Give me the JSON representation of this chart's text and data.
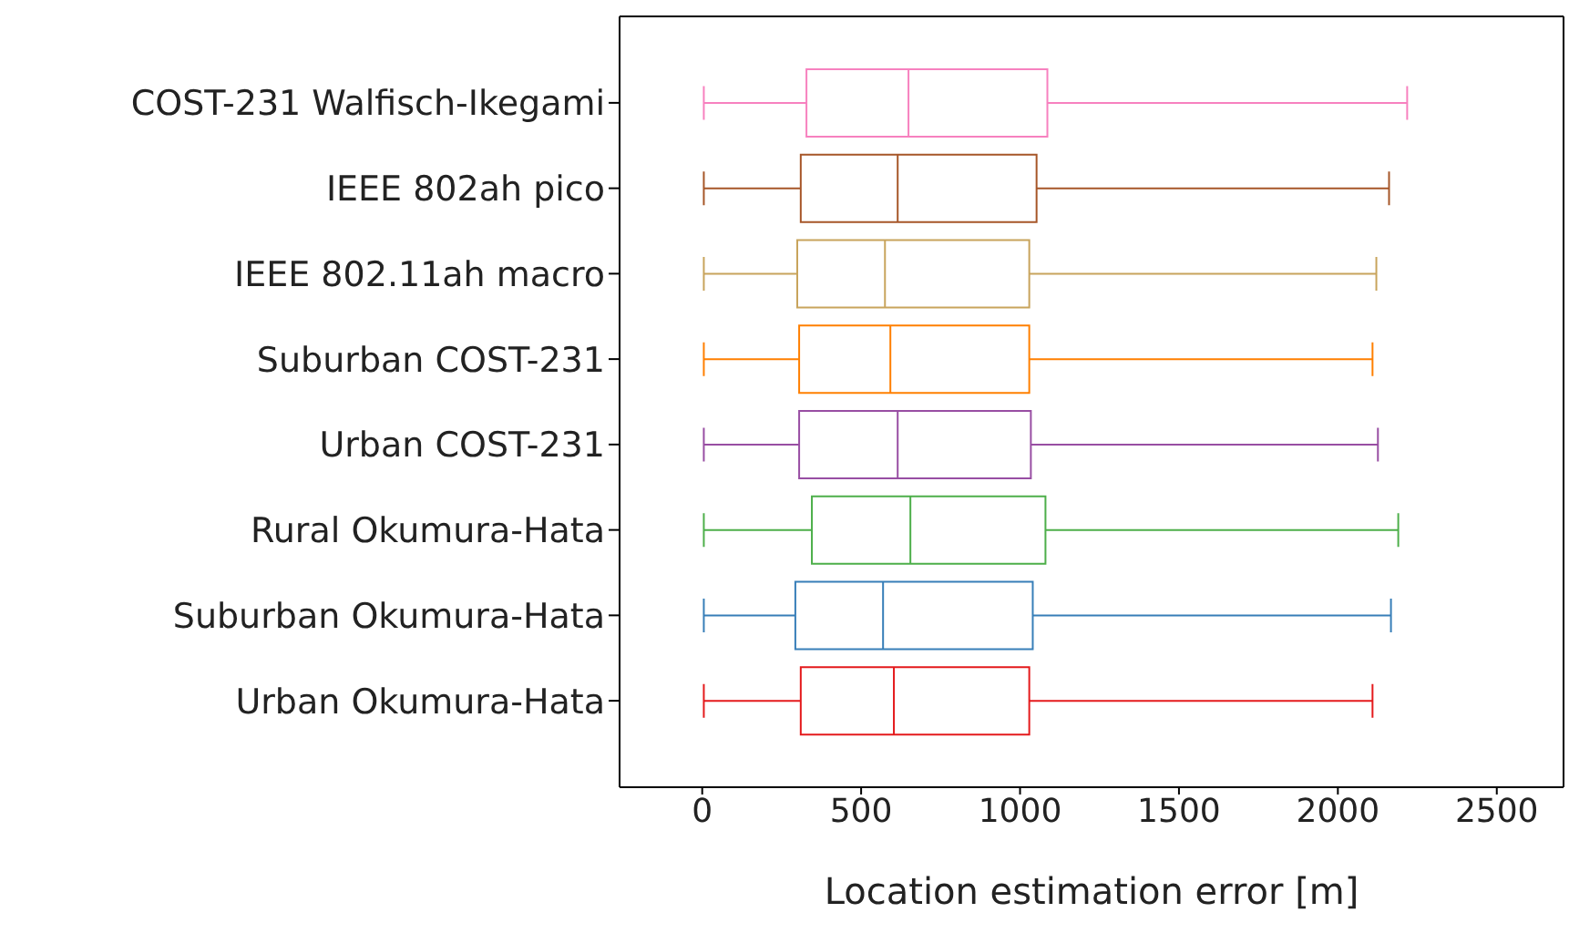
{
  "chart_data": {
    "type": "box",
    "xlabel": "Location estimation error [m]",
    "orientation": "horizontal",
    "categories": [
      "COST-231 Walfisch-Ikegami",
      "IEEE 802ah pico",
      "IEEE 802.11ah macro",
      "Suburban COST-231",
      "Urban COST-231",
      "Rural Okumura-Hata",
      "Suburban Okumura-Hata",
      "Urban Okumura-Hata"
    ],
    "colors": [
      "#f781bf",
      "#a65628",
      "#c8a45c",
      "#ff7f00",
      "#984ea3",
      "#4daf4a",
      "#377eb8",
      "#e41a1c"
    ],
    "boxes": [
      {
        "low": 5,
        "q1": 328,
        "median": 649,
        "q3": 1086,
        "high": 2218
      },
      {
        "low": 5,
        "q1": 310,
        "median": 615,
        "q3": 1052,
        "high": 2161
      },
      {
        "low": 5,
        "q1": 299,
        "median": 575,
        "q3": 1029,
        "high": 2121
      },
      {
        "low": 5,
        "q1": 305,
        "median": 592,
        "q3": 1029,
        "high": 2109
      },
      {
        "low": 5,
        "q1": 305,
        "median": 615,
        "q3": 1034,
        "high": 2126
      },
      {
        "low": 5,
        "q1": 345,
        "median": 655,
        "q3": 1080,
        "high": 2190
      },
      {
        "low": 5,
        "q1": 293,
        "median": 569,
        "q3": 1040,
        "high": 2167
      },
      {
        "low": 5,
        "q1": 310,
        "median": 603,
        "q3": 1029,
        "high": 2109
      }
    ],
    "xlim": [
      -260,
      2710
    ],
    "xticks": [
      0,
      500,
      1000,
      1500,
      2000,
      2500
    ],
    "grid": false
  }
}
